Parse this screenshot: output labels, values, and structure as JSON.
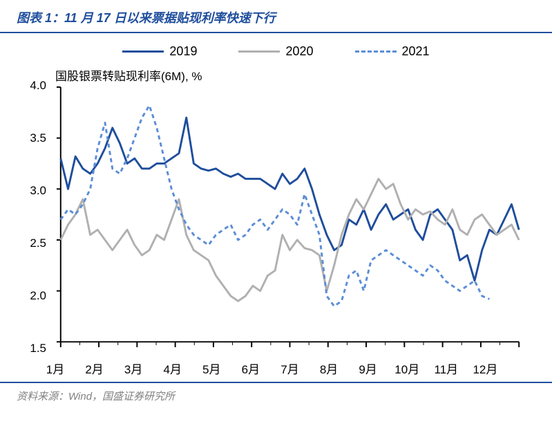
{
  "title": "图表 1：11 月 17 日以来票据贴现利率快速下行",
  "subtitle": "国股银票转贴现利率(6M), %",
  "footer": "资料来源：Wind，国盛证券研究所",
  "chart": {
    "type": "line",
    "background_color": "#ffffff",
    "title_color": "#1f4e9c",
    "title_fontsize": 18,
    "rule_color": "#1f4e9c",
    "axis_color": "#000000",
    "tick_color": "#000000",
    "label_fontsize": 17,
    "ylim": [
      1.5,
      4.0
    ],
    "ytick_step": 0.5,
    "yticks": [
      1.5,
      2.0,
      2.5,
      3.0,
      3.5,
      4.0
    ],
    "xticks": [
      "1月",
      "2月",
      "3月",
      "4月",
      "5月",
      "6月",
      "7月",
      "8月",
      "9月",
      "10月",
      "11月",
      "12月"
    ],
    "series": [
      {
        "name": "2019",
        "color": "#1f4e9c",
        "line_width": 3,
        "dash": "solid",
        "data": [
          3.3,
          3.0,
          3.32,
          3.2,
          3.15,
          3.25,
          3.4,
          3.6,
          3.45,
          3.25,
          3.3,
          3.2,
          3.2,
          3.25,
          3.25,
          3.3,
          3.35,
          3.7,
          3.25,
          3.2,
          3.18,
          3.2,
          3.15,
          3.12,
          3.15,
          3.1,
          3.1,
          3.1,
          3.05,
          3.0,
          3.15,
          3.05,
          3.1,
          3.2,
          3.0,
          2.75,
          2.55,
          2.4,
          2.45,
          2.7,
          2.65,
          2.8,
          2.6,
          2.75,
          2.85,
          2.7,
          2.75,
          2.8,
          2.6,
          2.5,
          2.75,
          2.8,
          2.7,
          2.6,
          2.3,
          2.35,
          2.1,
          2.4,
          2.6,
          2.55,
          2.7,
          2.85,
          2.6
        ]
      },
      {
        "name": "2020",
        "color": "#b0b0b0",
        "line_width": 3,
        "dash": "solid",
        "data": [
          2.5,
          2.65,
          2.75,
          2.9,
          2.55,
          2.6,
          2.5,
          2.4,
          2.5,
          2.6,
          2.45,
          2.35,
          2.4,
          2.55,
          2.5,
          2.7,
          2.9,
          2.55,
          2.4,
          2.35,
          2.3,
          2.15,
          2.05,
          1.95,
          1.9,
          1.95,
          2.05,
          2.0,
          2.15,
          2.2,
          2.55,
          2.4,
          2.5,
          2.42,
          2.4,
          2.35,
          2.0,
          2.25,
          2.55,
          2.75,
          2.9,
          2.8,
          2.95,
          3.1,
          3.0,
          3.05,
          2.85,
          2.7,
          2.8,
          2.75,
          2.78,
          2.7,
          2.65,
          2.8,
          2.6,
          2.55,
          2.7,
          2.75,
          2.65,
          2.55,
          2.6,
          2.65,
          2.5
        ]
      },
      {
        "name": "2021",
        "color": "#5b8dd6",
        "line_width": 3,
        "dash": "6,5",
        "data": [
          2.7,
          2.8,
          2.75,
          2.85,
          3.0,
          3.4,
          3.65,
          3.2,
          3.15,
          3.3,
          3.5,
          3.7,
          3.82,
          3.6,
          3.3,
          3.0,
          2.8,
          2.65,
          2.55,
          2.5,
          2.45,
          2.55,
          2.6,
          2.65,
          2.5,
          2.55,
          2.65,
          2.7,
          2.6,
          2.7,
          2.8,
          2.75,
          2.65,
          2.95,
          2.75,
          2.55,
          1.95,
          1.85,
          1.9,
          2.15,
          2.2,
          2.0,
          2.3,
          2.35,
          2.4,
          2.35,
          2.3,
          2.25,
          2.2,
          2.15,
          2.25,
          2.2,
          2.1,
          2.05,
          2.0,
          2.05,
          2.1,
          1.95,
          1.92
        ]
      }
    ]
  }
}
